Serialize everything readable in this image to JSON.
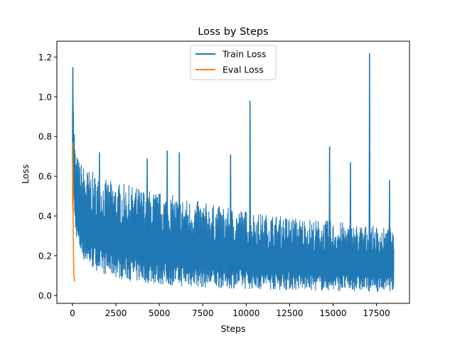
{
  "chart_data": {
    "type": "line",
    "title": "Loss by Steps",
    "xlabel": "Steps",
    "ylabel": "Loss",
    "xlim": [
      -900,
      19400
    ],
    "ylim": [
      -0.04,
      1.28
    ],
    "xticks": [
      0,
      2500,
      5000,
      7500,
      10000,
      12500,
      15000,
      17500
    ],
    "xtick_labels": [
      "0",
      "2500",
      "5000",
      "7500",
      "10000",
      "12500",
      "15000",
      "17500"
    ],
    "yticks": [
      0.0,
      0.2,
      0.4,
      0.6,
      0.8,
      1.0,
      1.2
    ],
    "ytick_labels": [
      "0.0",
      "0.2",
      "0.4",
      "0.6",
      "0.8",
      "1.0",
      "1.2"
    ],
    "grid": false,
    "legend": "top-center",
    "series": [
      {
        "name": "Train Loss",
        "color": "#1f77b4",
        "x": [
          0,
          30,
          60,
          100,
          150,
          200,
          300,
          400,
          600,
          800,
          1000,
          1500,
          2000,
          2500,
          3000,
          3500,
          4000,
          4500,
          5000,
          5500,
          6000,
          6500,
          7000,
          7500,
          8000,
          8500,
          9000,
          9500,
          10000,
          10200,
          10500,
          11000,
          11500,
          12000,
          12500,
          13000,
          13500,
          14000,
          14500,
          15000,
          15500,
          16000,
          16500,
          17000,
          17200,
          17500,
          18000,
          18300,
          18500
        ],
        "low": [
          0.75,
          0.55,
          0.45,
          0.38,
          0.33,
          0.3,
          0.25,
          0.22,
          0.18,
          0.16,
          0.14,
          0.12,
          0.1,
          0.09,
          0.08,
          0.07,
          0.065,
          0.06,
          0.055,
          0.05,
          0.048,
          0.045,
          0.043,
          0.04,
          0.038,
          0.036,
          0.035,
          0.034,
          0.033,
          0.032,
          0.031,
          0.03,
          0.029,
          0.028,
          0.027,
          0.026,
          0.025,
          0.024,
          0.023,
          0.022,
          0.022,
          0.021,
          0.021,
          0.02,
          0.02,
          0.02,
          0.02,
          0.02,
          0.02
        ],
        "high": [
          1.15,
          1.12,
          0.95,
          0.88,
          0.75,
          0.72,
          0.7,
          0.68,
          0.66,
          0.64,
          0.63,
          0.6,
          0.58,
          0.57,
          0.56,
          0.55,
          0.54,
          0.53,
          0.52,
          0.51,
          0.5,
          0.49,
          0.48,
          0.47,
          0.46,
          0.45,
          0.44,
          0.44,
          0.43,
          0.43,
          0.42,
          0.41,
          0.41,
          0.4,
          0.4,
          0.39,
          0.39,
          0.38,
          0.38,
          0.37,
          0.37,
          0.36,
          0.36,
          0.35,
          0.35,
          0.35,
          0.34,
          0.34,
          0.3
        ],
        "spikes": [
          {
            "x": 20,
            "y": 1.15
          },
          {
            "x": 1550,
            "y": 0.72
          },
          {
            "x": 4300,
            "y": 0.69
          },
          {
            "x": 5450,
            "y": 0.73
          },
          {
            "x": 6150,
            "y": 0.72
          },
          {
            "x": 9100,
            "y": 0.71
          },
          {
            "x": 10220,
            "y": 0.98
          },
          {
            "x": 14800,
            "y": 0.75
          },
          {
            "x": 16000,
            "y": 0.67
          },
          {
            "x": 17100,
            "y": 1.22
          },
          {
            "x": 18250,
            "y": 0.58
          }
        ]
      },
      {
        "name": "Eval Loss",
        "color": "#ff7f0e",
        "x": [
          0,
          10,
          20,
          30,
          40,
          50,
          60,
          70,
          80,
          90,
          100,
          110,
          120,
          130
        ],
        "y": [
          0.45,
          0.77,
          0.42,
          0.55,
          0.33,
          0.25,
          0.18,
          0.14,
          0.11,
          0.1,
          0.09,
          0.08,
          0.075,
          0.07
        ]
      }
    ]
  }
}
